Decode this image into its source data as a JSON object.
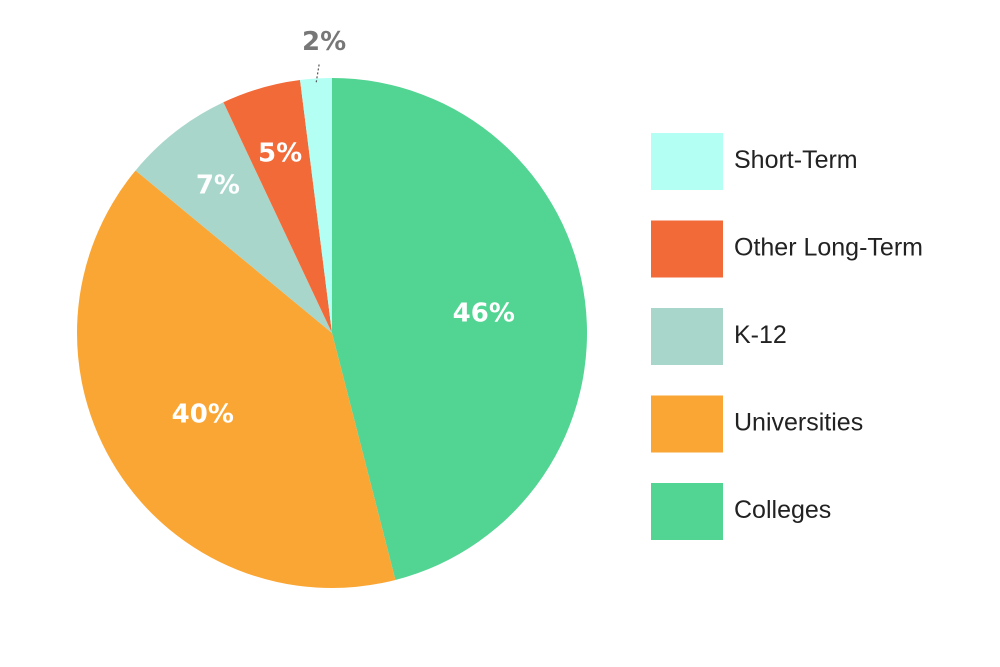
{
  "chart_data": {
    "type": "pie",
    "title": "",
    "start": "top, clockwise",
    "slices": [
      {
        "label": "Colleges",
        "value": 46,
        "display": "46%",
        "color": "#52d492"
      },
      {
        "label": "Universities",
        "value": 40,
        "display": "40%",
        "color": "#faa634"
      },
      {
        "label": "K-12",
        "value": 7,
        "display": "7%",
        "color": "#a9d6cb"
      },
      {
        "label": "Other Long-Term",
        "value": 5,
        "display": "5%",
        "color": "#f26a38"
      },
      {
        "label": "Short-Term",
        "value": 2,
        "display": "2%",
        "color": "#b4fff4",
        "label_position": "outside"
      }
    ],
    "legend": {
      "placement": "right",
      "order": [
        "Short-Term",
        "Other Long-Term",
        "K-12",
        "Universities",
        "Colleges"
      ]
    },
    "label_color": "#ffffff",
    "outside_label_color": "#777777"
  }
}
